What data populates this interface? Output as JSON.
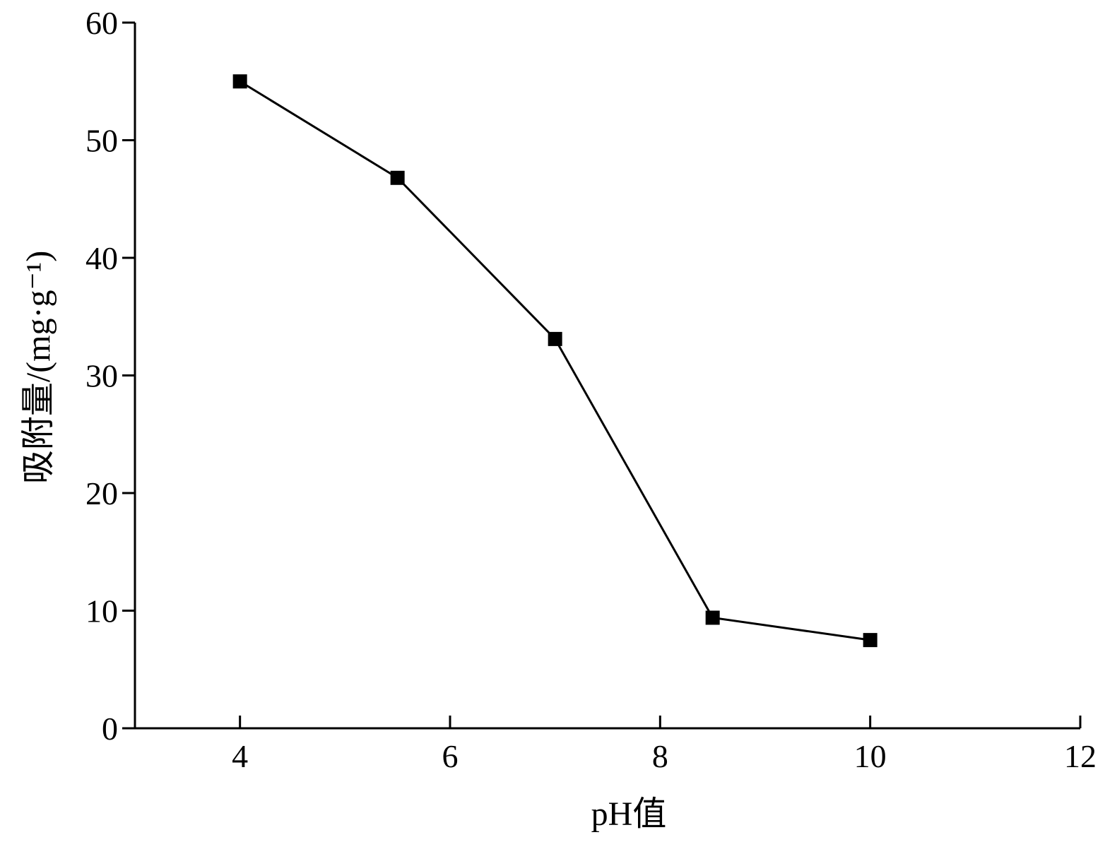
{
  "chart_data": {
    "type": "line",
    "title": "",
    "xlabel": "pH值",
    "ylabel": "吸附量/(mg·g⁻¹)",
    "xlim": [
      3,
      12
    ],
    "ylim": [
      0,
      60
    ],
    "xticks": [
      4,
      6,
      8,
      10,
      12
    ],
    "yticks": [
      0,
      10,
      20,
      30,
      40,
      50,
      60
    ],
    "xtick_labels": [
      "4",
      "6",
      "8",
      "10",
      "12"
    ],
    "ytick_labels": [
      "0",
      "10",
      "20",
      "30",
      "40",
      "50",
      "60"
    ],
    "grid": false,
    "legend": "none",
    "series": [
      {
        "marker": "square",
        "color": "#000000",
        "x": [
          4,
          5.5,
          7,
          8.5,
          10
        ],
        "y": [
          55,
          46.8,
          33.1,
          9.4,
          7.5
        ]
      }
    ]
  }
}
